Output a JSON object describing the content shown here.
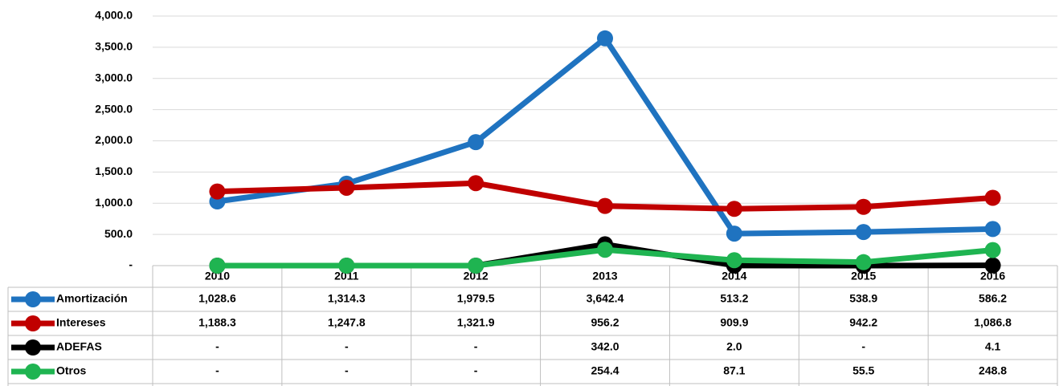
{
  "chart_data": {
    "type": "line",
    "categories": [
      "2010",
      "2011",
      "2012",
      "2013",
      "2014",
      "2015",
      "2016"
    ],
    "series": [
      {
        "name": "Amortización",
        "color": "#1f73c0",
        "values": [
          1028.6,
          1314.3,
          1979.5,
          3642.4,
          513.2,
          538.9,
          586.2
        ],
        "value_labels": [
          "1,028.6",
          "1,314.3",
          "1,979.5",
          "3,642.4",
          "513.2",
          "538.9",
          "586.2"
        ]
      },
      {
        "name": "Intereses",
        "color": "#c00000",
        "values": [
          1188.3,
          1247.8,
          1321.9,
          956.2,
          909.9,
          942.2,
          1086.8
        ],
        "value_labels": [
          "1,188.3",
          "1,247.8",
          "1,321.9",
          "956.2",
          "909.9",
          "942.2",
          "1,086.8"
        ]
      },
      {
        "name": "ADEFAS",
        "color": "#000000",
        "values": [
          0,
          0,
          0,
          342.0,
          2.0,
          0,
          4.1
        ],
        "value_labels": [
          "-",
          "-",
          "-",
          "342.0",
          "2.0",
          "-",
          "4.1"
        ]
      },
      {
        "name": "Otros",
        "color": "#1fb451",
        "values": [
          0,
          0,
          0,
          254.4,
          87.1,
          55.5,
          248.8
        ],
        "value_labels": [
          "-",
          "-",
          "-",
          "254.4",
          "87.1",
          "55.5",
          "248.8"
        ]
      }
    ],
    "ylim": [
      0,
      4000
    ],
    "yticks": [
      {
        "value": 0,
        "label": "-"
      },
      {
        "value": 500,
        "label": "500.0"
      },
      {
        "value": 1000,
        "label": "1,000.0"
      },
      {
        "value": 1500,
        "label": "1,500.0"
      },
      {
        "value": 2000,
        "label": "2,000.0"
      },
      {
        "value": 2500,
        "label": "2,500.0"
      },
      {
        "value": 3000,
        "label": "3,000.0"
      },
      {
        "value": 3500,
        "label": "3,500.0"
      },
      {
        "value": 4000,
        "label": "4,000.0"
      }
    ],
    "grid": true
  }
}
